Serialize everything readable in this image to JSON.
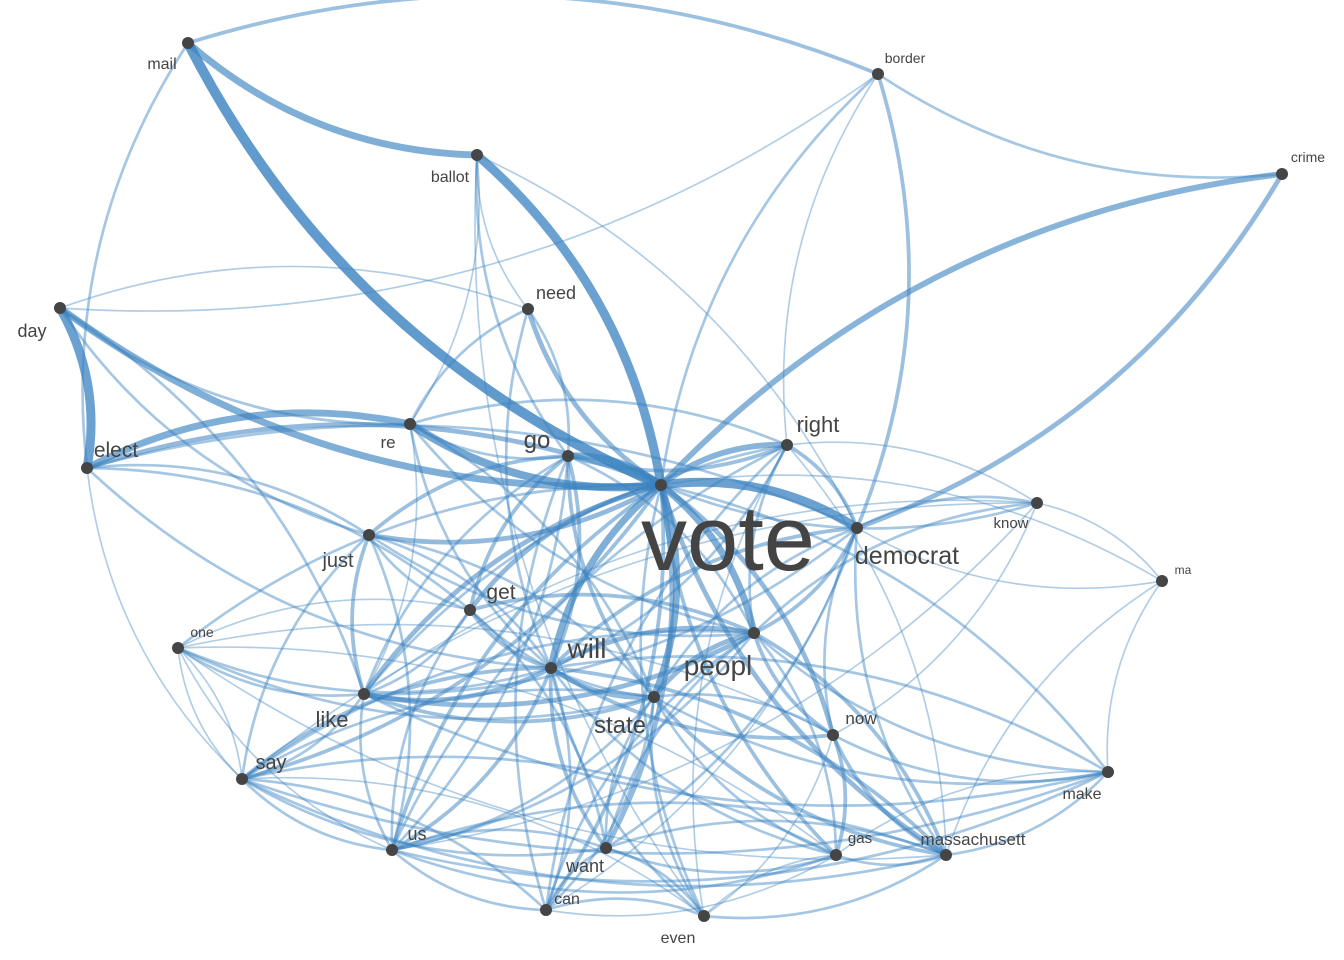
{
  "colors": {
    "edge": "#3a82c0",
    "node": "#454545",
    "label": "#444444",
    "background": "#ffffff"
  },
  "nodes": [
    {
      "id": "vote",
      "label": "vote",
      "weight": 10
    },
    {
      "id": "democrat",
      "label": "democrat",
      "weight": 3.2
    },
    {
      "id": "will",
      "label": "will",
      "weight": 3.7
    },
    {
      "id": "peopl",
      "label": "peopl",
      "weight": 3.6
    },
    {
      "id": "state",
      "label": "state",
      "weight": 3.0
    },
    {
      "id": "go",
      "label": "go",
      "weight": 3.0
    },
    {
      "id": "right",
      "label": "right",
      "weight": 2.7
    },
    {
      "id": "elect",
      "label": "elect",
      "weight": 2.5
    },
    {
      "id": "get",
      "label": "get",
      "weight": 2.5
    },
    {
      "id": "like",
      "label": "like",
      "weight": 2.6
    },
    {
      "id": "just",
      "label": "just",
      "weight": 2.4
    },
    {
      "id": "say",
      "label": "say",
      "weight": 2.3
    },
    {
      "id": "need",
      "label": "need",
      "weight": 2.0
    },
    {
      "id": "us",
      "label": "us",
      "weight": 2.0
    },
    {
      "id": "want",
      "label": "want",
      "weight": 2.0
    },
    {
      "id": "day",
      "label": "day",
      "weight": 2.0
    },
    {
      "id": "re",
      "label": "re",
      "weight": 1.9
    },
    {
      "id": "now",
      "label": "now",
      "weight": 1.8
    },
    {
      "id": "massachusett",
      "label": "massachusett",
      "weight": 1.8
    },
    {
      "id": "can",
      "label": "can",
      "weight": 1.7
    },
    {
      "id": "mail",
      "label": "mail",
      "weight": 1.6
    },
    {
      "id": "ballot",
      "label": "ballot",
      "weight": 1.6
    },
    {
      "id": "make",
      "label": "make",
      "weight": 1.6
    },
    {
      "id": "even",
      "label": "even",
      "weight": 1.6
    },
    {
      "id": "know",
      "label": "know",
      "weight": 1.5
    },
    {
      "id": "gas",
      "label": "gas",
      "weight": 1.5
    },
    {
      "id": "one",
      "label": "one",
      "weight": 1.4
    },
    {
      "id": "border",
      "label": "border",
      "weight": 1.4
    },
    {
      "id": "crime",
      "label": "crime",
      "weight": 1.3
    },
    {
      "id": "ma",
      "label": "ma",
      "weight": 1.0
    }
  ],
  "edges": [
    [
      "mail",
      "vote",
      9
    ],
    [
      "ballot",
      "vote",
      8
    ],
    [
      "mail",
      "ballot",
      6
    ],
    [
      "mail",
      "border",
      3
    ],
    [
      "mail",
      "elect",
      2
    ],
    [
      "day",
      "elect",
      8
    ],
    [
      "day",
      "vote",
      6
    ],
    [
      "elect",
      "re",
      6
    ],
    [
      "re",
      "vote",
      7
    ],
    [
      "elect",
      "vote",
      4
    ],
    [
      "crime",
      "vote",
      5
    ],
    [
      "crime",
      "democrat",
      4
    ],
    [
      "border",
      "crime",
      2
    ],
    [
      "border",
      "democrat",
      3
    ],
    [
      "border",
      "vote",
      2
    ],
    [
      "vote",
      "democrat",
      8
    ],
    [
      "right",
      "vote",
      5
    ],
    [
      "go",
      "vote",
      6
    ],
    [
      "go",
      "right",
      3
    ],
    [
      "vote",
      "state",
      6
    ],
    [
      "vote",
      "will",
      6
    ],
    [
      "vote",
      "peopl",
      6
    ],
    [
      "vote",
      "get",
      4
    ],
    [
      "vote",
      "just",
      4
    ],
    [
      "vote",
      "like",
      4
    ],
    [
      "vote",
      "want",
      4
    ],
    [
      "vote",
      "us",
      3
    ],
    [
      "vote",
      "can",
      3
    ],
    [
      "vote",
      "massachusett",
      4
    ],
    [
      "vote",
      "now",
      4
    ],
    [
      "vote",
      "gas",
      3
    ],
    [
      "vote",
      "need",
      4
    ],
    [
      "vote",
      "know",
      2
    ],
    [
      "vote",
      "say",
      3
    ],
    [
      "vote",
      "even",
      2
    ],
    [
      "vote",
      "make",
      2
    ],
    [
      "vote",
      "one",
      2
    ],
    [
      "vote",
      "ma",
      1
    ],
    [
      "need",
      "re",
      2
    ],
    [
      "need",
      "go",
      2
    ],
    [
      "need",
      "will",
      2
    ],
    [
      "need",
      "ballot",
      1
    ],
    [
      "day",
      "just",
      2
    ],
    [
      "day",
      "like",
      2
    ],
    [
      "day",
      "re",
      2
    ],
    [
      "day",
      "need",
      1
    ],
    [
      "day",
      "border",
      1
    ],
    [
      "elect",
      "just",
      2
    ],
    [
      "elect",
      "will",
      2
    ],
    [
      "elect",
      "get",
      2
    ],
    [
      "elect",
      "say",
      1
    ],
    [
      "elect",
      "democrat",
      2
    ],
    [
      "just",
      "like",
      3
    ],
    [
      "just",
      "go",
      3
    ],
    [
      "just",
      "get",
      2
    ],
    [
      "just",
      "will",
      2
    ],
    [
      "just",
      "peopl",
      2
    ],
    [
      "just",
      "state",
      2
    ],
    [
      "just",
      "say",
      2
    ],
    [
      "just",
      "us",
      2
    ],
    [
      "go",
      "get",
      3
    ],
    [
      "go",
      "will",
      3
    ],
    [
      "go",
      "state",
      3
    ],
    [
      "go",
      "peopl",
      2
    ],
    [
      "go",
      "like",
      2
    ],
    [
      "go",
      "us",
      2
    ],
    [
      "go",
      "can",
      2
    ],
    [
      "go",
      "re",
      2
    ],
    [
      "get",
      "will",
      3
    ],
    [
      "get",
      "peopl",
      3
    ],
    [
      "get",
      "state",
      2
    ],
    [
      "get",
      "like",
      2
    ],
    [
      "get",
      "us",
      2
    ],
    [
      "get",
      "want",
      2
    ],
    [
      "get",
      "one",
      1
    ],
    [
      "will",
      "peopl",
      4
    ],
    [
      "will",
      "state",
      4
    ],
    [
      "will",
      "like",
      4
    ],
    [
      "will",
      "say",
      3
    ],
    [
      "will",
      "us",
      3
    ],
    [
      "will",
      "want",
      3
    ],
    [
      "will",
      "can",
      2
    ],
    [
      "will",
      "now",
      3
    ],
    [
      "will",
      "massachusett",
      3
    ],
    [
      "will",
      "gas",
      2
    ],
    [
      "will",
      "democrat",
      3
    ],
    [
      "will",
      "right",
      2
    ],
    [
      "will",
      "one",
      2
    ],
    [
      "will",
      "even",
      2
    ],
    [
      "will",
      "make",
      2
    ],
    [
      "peopl",
      "state",
      4
    ],
    [
      "peopl",
      "like",
      4
    ],
    [
      "peopl",
      "democrat",
      3
    ],
    [
      "peopl",
      "right",
      2
    ],
    [
      "peopl",
      "now",
      3
    ],
    [
      "peopl",
      "massachusett",
      3
    ],
    [
      "peopl",
      "say",
      2
    ],
    [
      "peopl",
      "us",
      2
    ],
    [
      "peopl",
      "want",
      2
    ],
    [
      "peopl",
      "know",
      2
    ],
    [
      "peopl",
      "make",
      2
    ],
    [
      "peopl",
      "gas",
      2
    ],
    [
      "peopl",
      "can",
      2
    ],
    [
      "state",
      "like",
      3
    ],
    [
      "state",
      "massachusett",
      3
    ],
    [
      "state",
      "democrat",
      2
    ],
    [
      "state",
      "say",
      2
    ],
    [
      "state",
      "us",
      2
    ],
    [
      "state",
      "want",
      2
    ],
    [
      "state",
      "can",
      2
    ],
    [
      "state",
      "even",
      2
    ],
    [
      "state",
      "now",
      2
    ],
    [
      "state",
      "gas",
      2
    ],
    [
      "state",
      "one",
      2
    ],
    [
      "state",
      "make",
      2
    ],
    [
      "like",
      "say",
      2
    ],
    [
      "like",
      "us",
      2
    ],
    [
      "like",
      "one",
      2
    ],
    [
      "like",
      "democrat",
      2
    ],
    [
      "like",
      "right",
      2
    ],
    [
      "like",
      "make",
      2
    ],
    [
      "like",
      "know",
      1
    ],
    [
      "say",
      "us",
      2
    ],
    [
      "say",
      "can",
      2
    ],
    [
      "say",
      "want",
      2
    ],
    [
      "say",
      "even",
      1
    ],
    [
      "say",
      "massachusett",
      2
    ],
    [
      "say",
      "gas",
      2
    ],
    [
      "say",
      "make",
      2
    ],
    [
      "say",
      "one",
      1
    ],
    [
      "us",
      "can",
      2
    ],
    [
      "us",
      "want",
      2
    ],
    [
      "us",
      "gas",
      2
    ],
    [
      "us",
      "massachusett",
      2
    ],
    [
      "us",
      "make",
      2
    ],
    [
      "us",
      "right",
      2
    ],
    [
      "want",
      "can",
      2
    ],
    [
      "want",
      "even",
      2
    ],
    [
      "want",
      "gas",
      2
    ],
    [
      "want",
      "massachusett",
      2
    ],
    [
      "want",
      "democrat",
      2
    ],
    [
      "can",
      "even",
      2
    ],
    [
      "can",
      "gas",
      1
    ],
    [
      "can",
      "right",
      2
    ],
    [
      "can",
      "democrat",
      1
    ],
    [
      "even",
      "gas",
      1
    ],
    [
      "even",
      "massachusett",
      2
    ],
    [
      "even",
      "right",
      1
    ],
    [
      "now",
      "massachusett",
      3
    ],
    [
      "now",
      "gas",
      3
    ],
    [
      "now",
      "make",
      2
    ],
    [
      "now",
      "democrat",
      2
    ],
    [
      "now",
      "know",
      1
    ],
    [
      "massachusett",
      "gas",
      2
    ],
    [
      "massachusett",
      "make",
      2
    ],
    [
      "massachusett",
      "democrat",
      2
    ],
    [
      "massachusett",
      "right",
      1
    ],
    [
      "massachusett",
      "ma",
      1
    ],
    [
      "democrat",
      "right",
      3
    ],
    [
      "democrat",
      "know",
      2
    ],
    [
      "democrat",
      "ma",
      1
    ],
    [
      "know",
      "ma",
      1
    ],
    [
      "know",
      "right",
      1
    ],
    [
      "know",
      "us",
      1
    ],
    [
      "know",
      "say",
      1
    ],
    [
      "right",
      "border",
      1
    ],
    [
      "right",
      "re",
      2
    ],
    [
      "ballot",
      "re",
      1
    ],
    [
      "ballot",
      "go",
      2
    ],
    [
      "ballot",
      "democrat",
      1
    ],
    [
      "ballot",
      "even",
      1
    ],
    [
      "one",
      "say",
      1
    ],
    [
      "one",
      "us",
      1
    ],
    [
      "one",
      "gas",
      1
    ],
    [
      "one",
      "massachusett",
      1
    ],
    [
      "one",
      "now",
      1
    ],
    [
      "make",
      "gas",
      1
    ],
    [
      "make",
      "ma",
      1
    ],
    [
      "even",
      "now",
      1
    ],
    [
      "re",
      "state",
      2
    ],
    [
      "re",
      "will",
      2
    ],
    [
      "re",
      "like",
      1
    ],
    [
      "re",
      "peopl",
      2
    ]
  ]
}
